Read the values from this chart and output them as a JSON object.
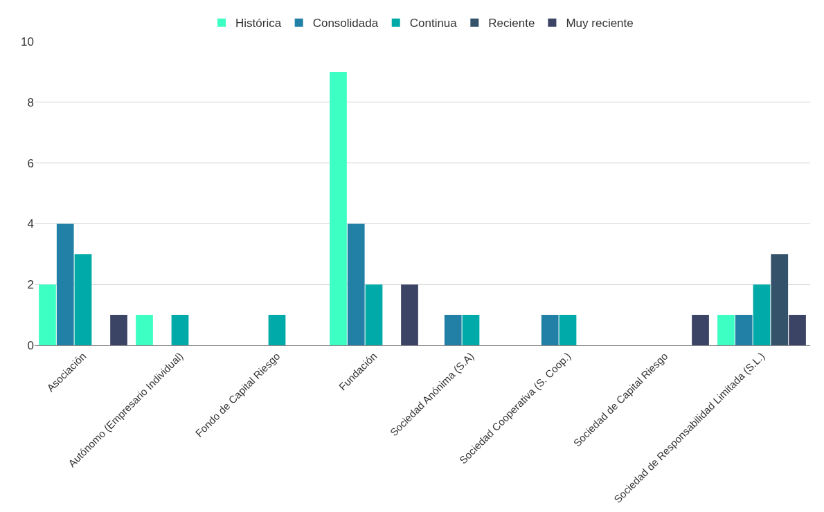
{
  "chart_data": {
    "type": "bar",
    "categories": [
      "Asociación",
      "Autónomo (Empresario Individual)",
      "Fondo de Capital Riesgo",
      "Fundación",
      "Sociedad Anónima (S.A)",
      "Sociedad Cooperativa (S. Coop.)",
      "Sociedad de Capital Riesgo",
      "Sociedad de Responsabilidad Limitada (S.L.)"
    ],
    "series": [
      {
        "name": "Histórica",
        "color": "#3dffc4",
        "values": [
          2,
          1,
          0,
          9,
          0,
          0,
          0,
          1
        ]
      },
      {
        "name": "Consolidada",
        "color": "#2280a6",
        "values": [
          4,
          0,
          0,
          4,
          1,
          1,
          0,
          1
        ]
      },
      {
        "name": "Continua",
        "color": "#00aaa8",
        "values": [
          3,
          1,
          1,
          2,
          1,
          1,
          0,
          2
        ]
      },
      {
        "name": "Reciente",
        "color": "#34526a",
        "values": [
          0,
          0,
          0,
          0,
          0,
          0,
          0,
          3
        ]
      },
      {
        "name": "Muy reciente",
        "color": "#3c4465",
        "values": [
          1,
          0,
          0,
          2,
          0,
          0,
          1,
          1
        ]
      }
    ],
    "ylim": [
      0,
      10
    ],
    "yticks": [
      0,
      2,
      4,
      6,
      8,
      10
    ],
    "grid": "y",
    "legend": "top"
  }
}
